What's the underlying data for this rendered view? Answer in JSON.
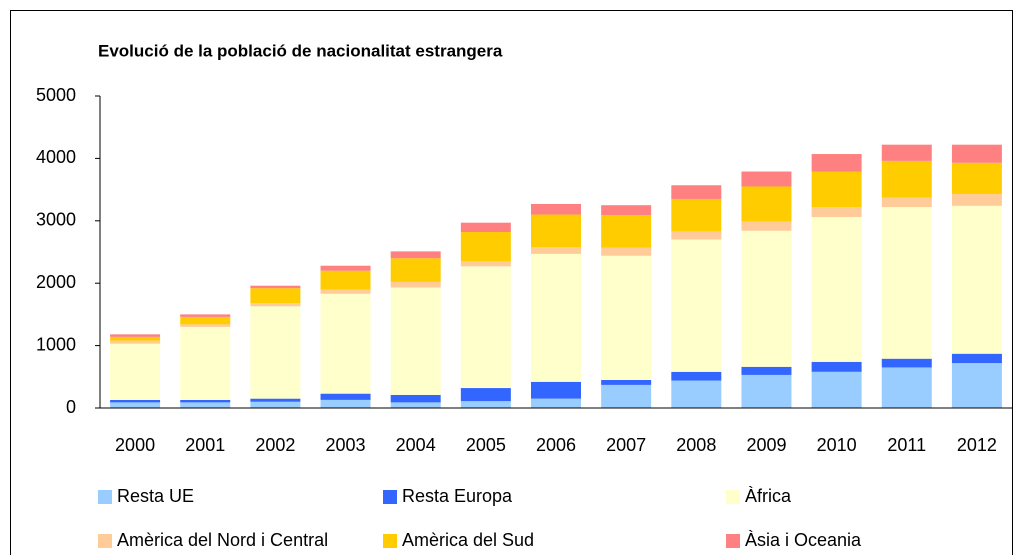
{
  "chart_data": {
    "type": "stacked_bar",
    "title": "Evolució de la població de nacionalitat estrangera",
    "categories": [
      "2000",
      "2001",
      "2002",
      "2003",
      "2004",
      "2005",
      "2006",
      "2007",
      "2008",
      "2009",
      "2010",
      "2011",
      "2012"
    ],
    "series": [
      {
        "name": "Resta UE",
        "color": "#99ccff",
        "values": [
          90,
          90,
          100,
          130,
          90,
          110,
          150,
          370,
          440,
          530,
          580,
          650,
          720
        ]
      },
      {
        "name": "Resta Europa",
        "color": "#3366ff",
        "values": [
          40,
          40,
          50,
          100,
          120,
          210,
          270,
          80,
          140,
          130,
          160,
          140,
          150
        ]
      },
      {
        "name": "Àfrica",
        "color": "#ffffcc",
        "values": [
          900,
          1170,
          1480,
          1600,
          1720,
          1950,
          2050,
          1990,
          2120,
          2180,
          2320,
          2430,
          2370
        ]
      },
      {
        "name": "Amèrica del Nord i Central",
        "color": "#ffcc99",
        "values": [
          50,
          40,
          50,
          70,
          90,
          80,
          110,
          130,
          130,
          150,
          160,
          150,
          190
        ]
      },
      {
        "name": "Amèrica del Sud",
        "color": "#ffcc00",
        "values": [
          60,
          120,
          240,
          300,
          380,
          470,
          520,
          520,
          520,
          560,
          570,
          590,
          500
        ]
      },
      {
        "name": "Àsia i Oceania",
        "color": "#ff8080",
        "values": [
          40,
          40,
          40,
          80,
          110,
          150,
          170,
          160,
          220,
          240,
          280,
          260,
          290
        ]
      }
    ],
    "ylim": [
      0,
      5000
    ],
    "yticks": [
      0,
      1000,
      2000,
      3000,
      4000,
      5000
    ],
    "grid": false,
    "legend": "bottom"
  }
}
